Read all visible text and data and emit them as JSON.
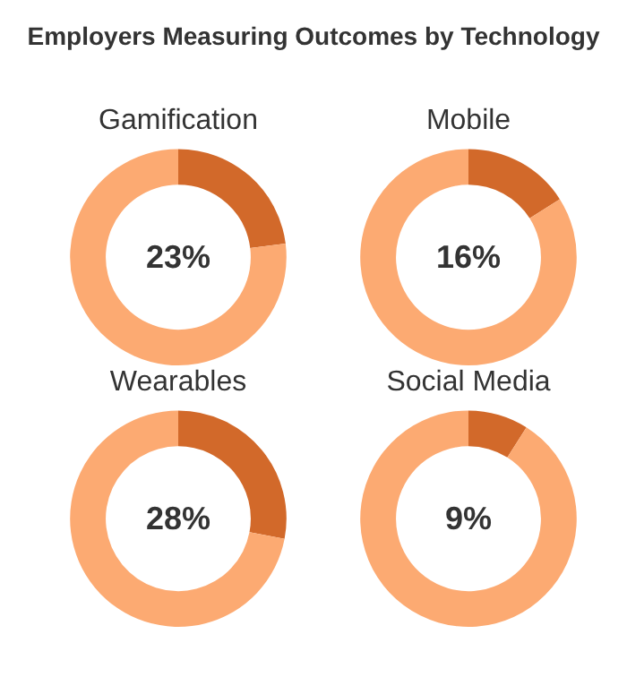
{
  "chart_data": [
    {
      "type": "other",
      "title": "Employers Measuring Outcomes by Technology"
    },
    {
      "type": "donut",
      "title": "Gamification",
      "categories": [
        null,
        null
      ],
      "values": [
        23,
        77
      ],
      "colors": [
        "#d2692a",
        "#fcaa72"
      ],
      "annotations": [
        "23%"
      ]
    },
    {
      "type": "donut",
      "title": "Mobile",
      "categories": [
        null,
        null
      ],
      "values": [
        16,
        84
      ],
      "colors": [
        "#d2692a",
        "#fcaa72"
      ],
      "annotations": [
        "16%"
      ]
    },
    {
      "type": "donut",
      "title": "Wearables",
      "categories": [
        null,
        null
      ],
      "values": [
        28,
        72
      ],
      "colors": [
        "#d2692a",
        "#fcaa72"
      ],
      "annotations": [
        "28%"
      ]
    },
    {
      "type": "donut",
      "title": "Social Media",
      "categories": [
        null,
        null
      ],
      "values": [
        9,
        91
      ],
      "colors": [
        "#d2692a",
        "#fcaa72"
      ],
      "annotations": [
        "9%"
      ]
    }
  ]
}
